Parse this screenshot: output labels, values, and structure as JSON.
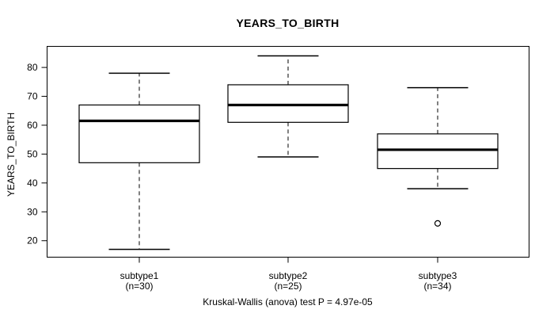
{
  "chart_data": {
    "type": "boxplot",
    "title": "YEARS_TO_BIRTH",
    "ylabel": "YEARS_TO_BIRTH",
    "xlabel": "",
    "caption": "Kruskal-Wallis (anova) test P = 4.97e-05",
    "ylim": [
      14.3,
      87.3
    ],
    "yticks": [
      20,
      30,
      40,
      50,
      60,
      70,
      80
    ],
    "grid": false,
    "legend": null,
    "categories": [
      "subtype1",
      "subtype2",
      "subtype3"
    ],
    "category_sublabels": [
      "(n=30)",
      "(n=25)",
      "(n=34)"
    ],
    "series": [
      {
        "name": "subtype1",
        "n": 30,
        "whisker_low": 17,
        "q1": 47,
        "median": 61.5,
        "q3": 67,
        "whisker_high": 78,
        "outliers": []
      },
      {
        "name": "subtype2",
        "n": 25,
        "whisker_low": 49,
        "q1": 61,
        "median": 67,
        "q3": 74,
        "whisker_high": 84,
        "outliers": []
      },
      {
        "name": "subtype3",
        "n": 34,
        "whisker_low": 38,
        "q1": 45,
        "median": 51.5,
        "q3": 57,
        "whisker_high": 73,
        "outliers": [
          26
        ]
      }
    ],
    "colors": {
      "line": "#000000",
      "box_fill": "#ffffff",
      "background": "#ffffff"
    }
  }
}
